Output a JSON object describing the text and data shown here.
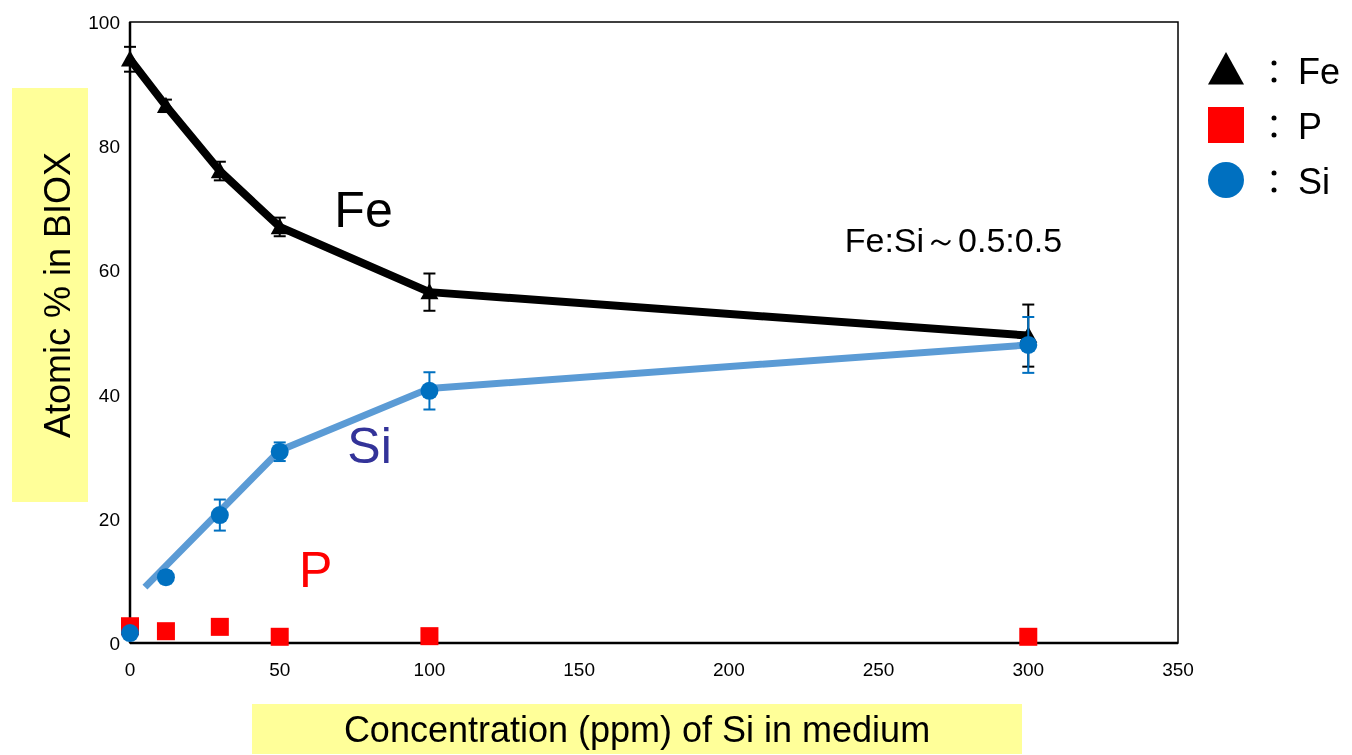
{
  "chart_data": {
    "type": "scatter",
    "xlabel": "Concentration (ppm) of Si in medium",
    "ylabel": "Atomic % in BIOX",
    "xlim": [
      0,
      350
    ],
    "xticks": [
      0,
      50,
      100,
      150,
      200,
      250,
      300,
      350
    ],
    "ylim": [
      0,
      100
    ],
    "yticks": [
      0,
      20,
      40,
      60,
      80,
      100
    ],
    "grid": false,
    "legend": "top right",
    "series": [
      {
        "name": "Fe",
        "type": "line",
        "marker": "triangle",
        "color": "#000000",
        "x": [
          0,
          12,
          30,
          50,
          100,
          300
        ],
        "values": [
          94,
          86.5,
          76,
          67,
          56.5,
          49.5
        ],
        "errors": [
          2,
          1,
          1.5,
          1.5,
          3,
          5
        ]
      },
      {
        "type": "line",
        "marker": "none",
        "color": "#5b9bd5",
        "x": [
          5,
          50,
          100,
          300
        ],
        "values": [
          9,
          31,
          41,
          48
        ]
      },
      {
        "name": "P",
        "marker": "square",
        "color": "#ff0000",
        "x": [
          0,
          12,
          30,
          50,
          100,
          300
        ],
        "values": [
          2.7,
          1.9,
          2.6,
          1,
          1.1,
          1
        ]
      },
      {
        "name": "Si",
        "marker": "circle",
        "color": "#0070c0",
        "x": [
          0,
          12,
          30,
          50,
          100,
          300
        ],
        "values": [
          1.6,
          10.6,
          20.6,
          30.8,
          40.6,
          48
        ],
        "errors": [
          null,
          1,
          2.5,
          1.5,
          3,
          4.5
        ]
      }
    ],
    "annotations": [
      "Fe",
      "Si",
      "P",
      "Fe:Si～0.5:0.5"
    ]
  }
}
